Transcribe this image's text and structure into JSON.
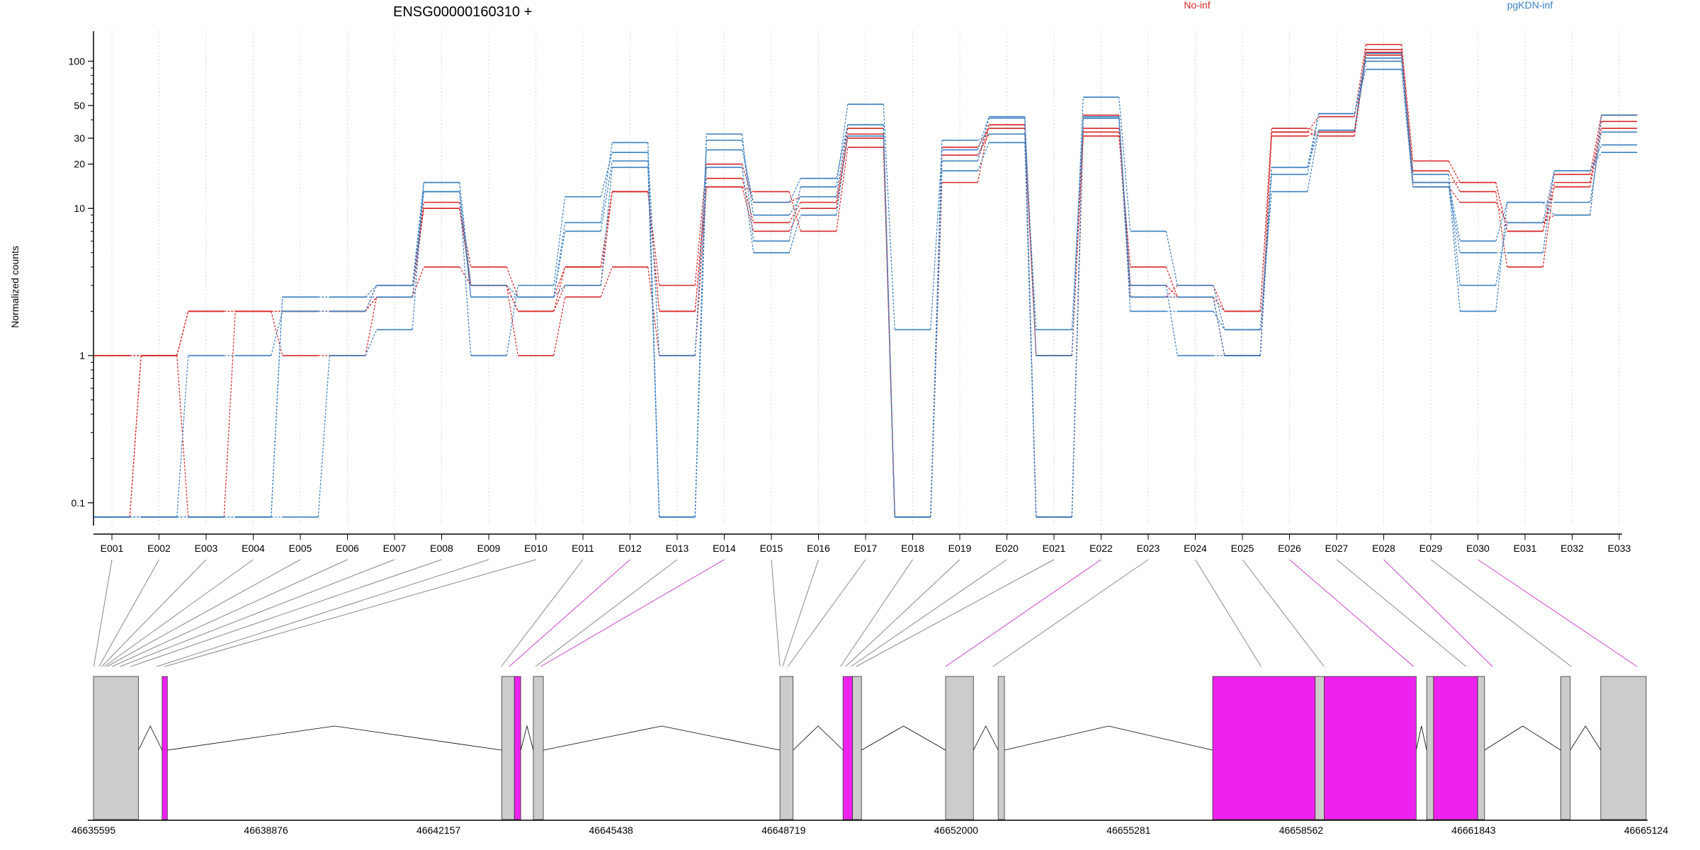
{
  "chart_data": {
    "type": "line",
    "title": "ENSG00000160310 +",
    "ylabel": "Normalized counts",
    "y_scale": "log",
    "y_ticks": [
      "0.1",
      "1",
      "10",
      "20",
      "30",
      "50",
      "100"
    ],
    "y_tick_values": [
      0.1,
      1,
      10,
      20,
      30,
      50,
      100
    ],
    "ylim": [
      0.07,
      160
    ],
    "legend": [
      "No-inf",
      "pgKDN-inf"
    ],
    "legend_placement": "top",
    "colors": {
      "No-inf": "#d62728",
      "pgKDN-inf": "#3a7fc0"
    },
    "categories": [
      "E001",
      "E002",
      "E003",
      "E004",
      "E005",
      "E006",
      "E007",
      "E008",
      "E009",
      "E010",
      "E011",
      "E012",
      "E013",
      "E014",
      "E015",
      "E016",
      "E017",
      "E018",
      "E019",
      "E020",
      "E021",
      "E022",
      "E023",
      "E024",
      "E025",
      "E026",
      "E027",
      "E028",
      "E029",
      "E030",
      "E031",
      "E032",
      "E033"
    ],
    "series": [
      {
        "group": "No-inf",
        "values": [
          1,
          1,
          2,
          2,
          2,
          2,
          3,
          10,
          4,
          2.5,
          4,
          13,
          3,
          20,
          11,
          12,
          35,
          0.08,
          23,
          32,
          1,
          35,
          3,
          2.5,
          2,
          33,
          42,
          130,
          21,
          15,
          7,
          17,
          43
        ]
      },
      {
        "group": "No-inf",
        "values": [
          1,
          1,
          0.08,
          2,
          1,
          1,
          2.5,
          11,
          3,
          2,
          4,
          13,
          2,
          16,
          8,
          11,
          30,
          0.08,
          21,
          37,
          0.08,
          43,
          2.5,
          3,
          2,
          35,
          33,
          120,
          18,
          13,
          4,
          15,
          39
        ]
      },
      {
        "group": "No-inf",
        "values": [
          0.08,
          1,
          2,
          2,
          2,
          2,
          2.5,
          4,
          3,
          1,
          2.5,
          4,
          1,
          14,
          13,
          7,
          26,
          0.08,
          15,
          37,
          1,
          31,
          4,
          2.5,
          1,
          31,
          33,
          115,
          14,
          11,
          8,
          9,
          43
        ]
      },
      {
        "group": "No-inf",
        "values": [
          0.08,
          1,
          2,
          2,
          2,
          2,
          2.5,
          10,
          3,
          2,
          3,
          13,
          2,
          14,
          7,
          10,
          32,
          0.08,
          26,
          35,
          0.08,
          33,
          2.5,
          2.5,
          1,
          33,
          31,
          110,
          15,
          15,
          7,
          14,
          35
        ]
      },
      {
        "group": "pgKDN-inf",
        "values": [
          0.08,
          0.08,
          1,
          1,
          2,
          2,
          3,
          15,
          2.5,
          2.5,
          8,
          28,
          0.08,
          32,
          6,
          14,
          51,
          1.5,
          25,
          42,
          1,
          57,
          7,
          3,
          1.5,
          17,
          44,
          88,
          14,
          5,
          5,
          18,
          24
        ]
      },
      {
        "group": "pgKDN-inf",
        "values": [
          0.08,
          0.08,
          0.08,
          0.08,
          2.5,
          2.5,
          3,
          13,
          1,
          3,
          12,
          24,
          1,
          25,
          11,
          16,
          37,
          0.08,
          18,
          28,
          0.08,
          42,
          3,
          1,
          1,
          19,
          44,
          105,
          17,
          3,
          8,
          18,
          27
        ]
      },
      {
        "group": "pgKDN-inf",
        "values": [
          0.08,
          0.08,
          0.08,
          0.08,
          0.08,
          1,
          1.5,
          15,
          3,
          2.5,
          7,
          21,
          0.08,
          29,
          9,
          12,
          37,
          0.08,
          21,
          41,
          0.08,
          41,
          2.5,
          2.5,
          1,
          19,
          34,
          113,
          15,
          2,
          11,
          11,
          33
        ]
      },
      {
        "group": "pgKDN-inf",
        "values": [
          0.08,
          0.08,
          0.08,
          0.08,
          2.5,
          2.5,
          2.5,
          13,
          2.5,
          2.5,
          3,
          19,
          0.08,
          19,
          5,
          9,
          31,
          0.08,
          29,
          32,
          1.5,
          41,
          2,
          2,
          1.5,
          13,
          34,
          100,
          15,
          6,
          11,
          9,
          43
        ]
      }
    ]
  },
  "gene_model": {
    "axis_ticks": [
      "46635595",
      "46638876",
      "46642157",
      "46645438",
      "46648719",
      "46652000",
      "46655281",
      "46658562",
      "46661843",
      "46665124"
    ],
    "axis_tick_values": [
      46635595,
      46638876,
      46642157,
      46645438,
      46648719,
      46652000,
      46655281,
      46658562,
      46661843,
      46665124
    ],
    "genome_range": [
      46635595,
      46665124
    ],
    "feature_colors": {
      "exon": "#cccccc",
      "highlight": "#ee22ee",
      "link": "#888888",
      "link_highlight": "#cc44cc"
    },
    "exons": [
      {
        "start": 46635595,
        "end": 46636450,
        "highlight": false
      },
      {
        "start": 46636900,
        "end": 46637000,
        "highlight": true
      },
      {
        "start": 46643360,
        "end": 46643600,
        "highlight": false
      },
      {
        "start": 46643600,
        "end": 46643720,
        "highlight": true
      },
      {
        "start": 46643960,
        "end": 46644150,
        "highlight": false
      },
      {
        "start": 46648650,
        "end": 46648900,
        "highlight": false
      },
      {
        "start": 46649850,
        "end": 46650030,
        "highlight": true
      },
      {
        "start": 46650030,
        "end": 46650200,
        "highlight": false
      },
      {
        "start": 46651800,
        "end": 46652330,
        "highlight": false
      },
      {
        "start": 46652800,
        "end": 46652920,
        "highlight": false
      },
      {
        "start": 46656880,
        "end": 46658830,
        "highlight": true
      },
      {
        "start": 46658830,
        "end": 46659000,
        "highlight": false
      },
      {
        "start": 46659000,
        "end": 46660750,
        "highlight": true
      },
      {
        "start": 46660950,
        "end": 46661080,
        "highlight": false
      },
      {
        "start": 46661080,
        "end": 46661920,
        "highlight": true
      },
      {
        "start": 46661920,
        "end": 46662050,
        "highlight": false
      },
      {
        "start": 46663500,
        "end": 46663680,
        "highlight": false
      },
      {
        "start": 46664260,
        "end": 46665124,
        "highlight": false
      }
    ],
    "exon_links": [
      46635600,
      46635700,
      46635750,
      46635800,
      46635850,
      46635950,
      46636100,
      46636300,
      46636800,
      46636950,
      46643350,
      46643500,
      46644000,
      46644100,
      46648650,
      46648700,
      46648800,
      46649800,
      46649900,
      46650000,
      46650100,
      46651800,
      46652700,
      46657800,
      46659000,
      46660700,
      46661700,
      46662200,
      46663700,
      46664950
    ],
    "highlight_links": [
      11,
      13,
      21,
      25,
      27,
      29
    ]
  }
}
